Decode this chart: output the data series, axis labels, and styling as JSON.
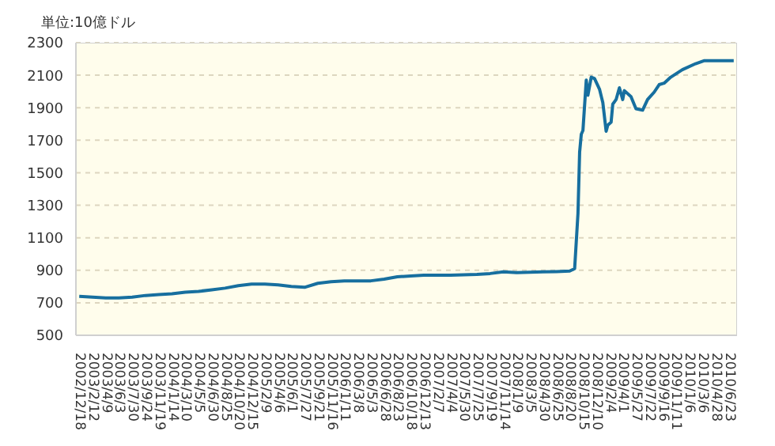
{
  "chart_data": {
    "type": "line",
    "ylabel": "単位:10億ドル",
    "x": [
      "2002-12-18",
      "2003-02-12",
      "2003-04-09",
      "2003-06-03",
      "2003-07-30",
      "2003-09-24",
      "2003-11-19",
      "2004-01-14",
      "2004-03-10",
      "2004-05-05",
      "2004-06-30",
      "2004-08-25",
      "2004-10-20",
      "2004-12-15",
      "2005-02-09",
      "2005-04-06",
      "2005-06-01",
      "2005-07-27",
      "2005-09-21",
      "2005-11-16",
      "2006-01-11",
      "2006-03-08",
      "2006-05-03",
      "2006-06-28",
      "2006-08-23",
      "2006-10-18",
      "2006-12-13",
      "2007-02-07",
      "2007-04-04",
      "2007-05-30",
      "2007-07-25",
      "2007-09-19",
      "2007-11-14",
      "2008-01-09",
      "2008-03-05",
      "2008-04-30",
      "2008-06-25",
      "2008-08-20",
      "2008-09-10",
      "2008-09-24",
      "2008-10-01",
      "2008-10-08",
      "2008-10-15",
      "2008-10-29",
      "2008-11-05",
      "2008-11-19",
      "2008-12-03",
      "2008-12-24",
      "2009-01-07",
      "2009-01-21",
      "2009-01-28",
      "2009-02-11",
      "2009-02-18",
      "2009-03-04",
      "2009-03-18",
      "2009-04-01",
      "2009-04-08",
      "2009-05-06",
      "2009-05-27",
      "2009-06-24",
      "2009-07-15",
      "2009-08-12",
      "2009-09-02",
      "2009-09-23",
      "2009-10-21",
      "2009-12-09",
      "2010-02-03",
      "2010-03-10",
      "2010-07-14"
    ],
    "series": [
      {
        "color": "#176f9f",
        "values": [
          740,
          735,
          730,
          730,
          735,
          745,
          750,
          755,
          765,
          770,
          780,
          790,
          805,
          815,
          815,
          810,
          800,
          795,
          820,
          830,
          835,
          835,
          835,
          845,
          860,
          865,
          870,
          870,
          870,
          872,
          875,
          880,
          890,
          885,
          888,
          890,
          892,
          895,
          910,
          1250,
          1626,
          1737,
          1760,
          2070,
          1977,
          2088,
          2079,
          2014,
          1931,
          1755,
          1793,
          1811,
          1922,
          1950,
          2023,
          1950,
          2005,
          1968,
          1894,
          1885,
          1950,
          1996,
          2042,
          2051,
          2088,
          2134,
          2171,
          2189,
          2189
        ]
      }
    ],
    "xlim": [
      "2002-12-04",
      "2010-07-28"
    ],
    "xticks": [
      {
        "value": "2002-12-18",
        "label": "2002/12/18"
      },
      {
        "value": "2003-02-12",
        "label": "2003/2/12"
      },
      {
        "value": "2003-04-09",
        "label": "2003/4/9"
      },
      {
        "value": "2003-06-04",
        "label": "2003/6/3"
      },
      {
        "value": "2003-07-30",
        "label": "2003/7/30"
      },
      {
        "value": "2003-09-24",
        "label": "2003/9/24"
      },
      {
        "value": "2003-11-19",
        "label": "2003/11/19"
      },
      {
        "value": "2004-01-14",
        "label": "2004/1/14"
      },
      {
        "value": "2004-03-10",
        "label": "2004/3/10"
      },
      {
        "value": "2004-05-05",
        "label": "2004/5/5"
      },
      {
        "value": "2004-06-30",
        "label": "2004/6/30"
      },
      {
        "value": "2004-08-25",
        "label": "2004/8/25"
      },
      {
        "value": "2004-10-20",
        "label": "2004/10/20"
      },
      {
        "value": "2004-12-15",
        "label": "2004/12/15"
      },
      {
        "value": "2005-02-09",
        "label": "2005/2/9"
      },
      {
        "value": "2005-04-06",
        "label": "2005/4/6"
      },
      {
        "value": "2005-06-01",
        "label": "2005/6/1"
      },
      {
        "value": "2005-07-27",
        "label": "2005/7/27"
      },
      {
        "value": "2005-09-21",
        "label": "2005/9/21"
      },
      {
        "value": "2005-11-16",
        "label": "2005/11/16"
      },
      {
        "value": "2006-01-11",
        "label": "2006/1/11"
      },
      {
        "value": "2006-03-08",
        "label": "2006/3/8"
      },
      {
        "value": "2006-05-03",
        "label": "2006/5/3"
      },
      {
        "value": "2006-06-28",
        "label": "2006/6/28"
      },
      {
        "value": "2006-08-23",
        "label": "2006/8/23"
      },
      {
        "value": "2006-10-18",
        "label": "2006/10/18"
      },
      {
        "value": "2006-12-13",
        "label": "2006/12/13"
      },
      {
        "value": "2007-02-07",
        "label": "2007/2/7"
      },
      {
        "value": "2007-04-04",
        "label": "2007/4/4"
      },
      {
        "value": "2007-05-30",
        "label": "2007/5/30"
      },
      {
        "value": "2007-07-25",
        "label": "2007/7/25"
      },
      {
        "value": "2007-09-19",
        "label": "2007/9/19"
      },
      {
        "value": "2007-11-14",
        "label": "2007/11/14"
      },
      {
        "value": "2008-01-09",
        "label": "2008/1/9"
      },
      {
        "value": "2008-03-05",
        "label": "2008/3/5"
      },
      {
        "value": "2008-04-30",
        "label": "2008/4/30"
      },
      {
        "value": "2008-06-25",
        "label": "2008/6/25"
      },
      {
        "value": "2008-08-20",
        "label": "2008/8/20"
      },
      {
        "value": "2008-10-15",
        "label": "2008/10/15"
      },
      {
        "value": "2008-12-10",
        "label": "2008/12/10"
      },
      {
        "value": "2009-02-04",
        "label": "2009/2/4"
      },
      {
        "value": "2009-04-01",
        "label": "2009/4/1"
      },
      {
        "value": "2009-05-27",
        "label": "2009/5/27"
      },
      {
        "value": "2009-07-22",
        "label": "2009/7/22"
      },
      {
        "value": "2009-09-16",
        "label": "2009/9/16"
      },
      {
        "value": "2009-11-11",
        "label": "2009/11/11"
      },
      {
        "value": "2010-01-06",
        "label": "2010/1/6"
      },
      {
        "value": "2010-03-03",
        "label": "2010/3/6"
      },
      {
        "value": "2010-04-28",
        "label": "2010/4/28"
      },
      {
        "value": "2010-06-23",
        "label": "2010/6/23"
      }
    ],
    "ylim": [
      500,
      2300
    ],
    "yticks": [
      500,
      700,
      900,
      1100,
      1300,
      1500,
      1700,
      1900,
      2100,
      2300
    ],
    "grid": "y",
    "marker": "none",
    "line_style": "solid"
  }
}
